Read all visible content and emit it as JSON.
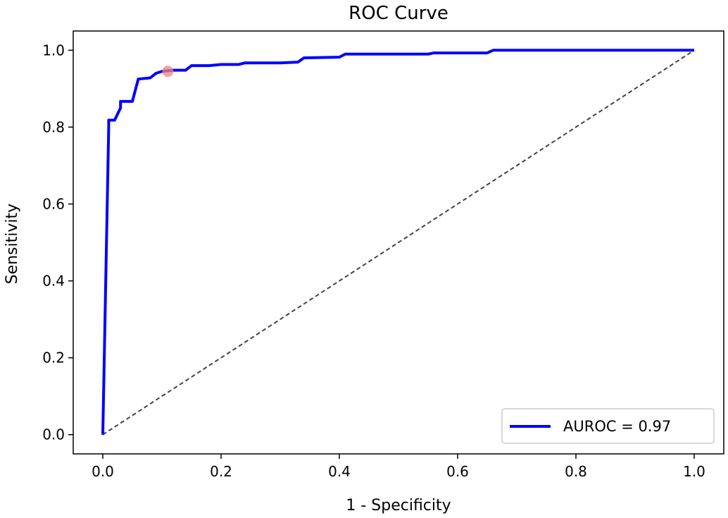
{
  "chart_data": {
    "type": "line",
    "title": "ROC Curve",
    "xlabel": "1 - Specificity",
    "ylabel": "Sensitivity",
    "xlim": [
      -0.05,
      1.05
    ],
    "ylim": [
      -0.05,
      1.05
    ],
    "xticks": [
      0.0,
      0.2,
      0.4,
      0.6,
      0.8,
      1.0
    ],
    "yticks": [
      0.0,
      0.2,
      0.4,
      0.6,
      0.8,
      1.0
    ],
    "tick_labels_x": [
      "0.0",
      "0.2",
      "0.4",
      "0.6",
      "0.8",
      "1.0"
    ],
    "tick_labels_y": [
      "0.0",
      "0.2",
      "0.4",
      "0.6",
      "0.8",
      "1.0"
    ],
    "grid": false,
    "legend_position": "lower-right",
    "series": [
      {
        "name": "AUROC = 0.97",
        "color": "#0000ff",
        "x": [
          0.0,
          0.01,
          0.01,
          0.02,
          0.03,
          0.03,
          0.05,
          0.06,
          0.08,
          0.09,
          0.1,
          0.12,
          0.14,
          0.15,
          0.18,
          0.2,
          0.23,
          0.24,
          0.3,
          0.33,
          0.34,
          0.4,
          0.41,
          0.45,
          0.55,
          0.56,
          0.6,
          0.65,
          0.66,
          0.7,
          0.8,
          1.0
        ],
        "y": [
          0.0,
          0.8,
          0.818,
          0.818,
          0.85,
          0.867,
          0.867,
          0.925,
          0.928,
          0.94,
          0.945,
          0.948,
          0.948,
          0.96,
          0.96,
          0.963,
          0.963,
          0.967,
          0.967,
          0.969,
          0.98,
          0.982,
          0.99,
          0.99,
          0.99,
          0.993,
          0.993,
          0.993,
          1.0,
          1.0,
          1.0,
          1.0
        ]
      }
    ],
    "reference_line": {
      "x": [
        0.0,
        1.0
      ],
      "y": [
        0.0,
        1.0
      ],
      "color": "#444444",
      "style": "dashed"
    },
    "operating_point": {
      "x": 0.11,
      "y": 0.945,
      "color": "#f08080"
    }
  }
}
